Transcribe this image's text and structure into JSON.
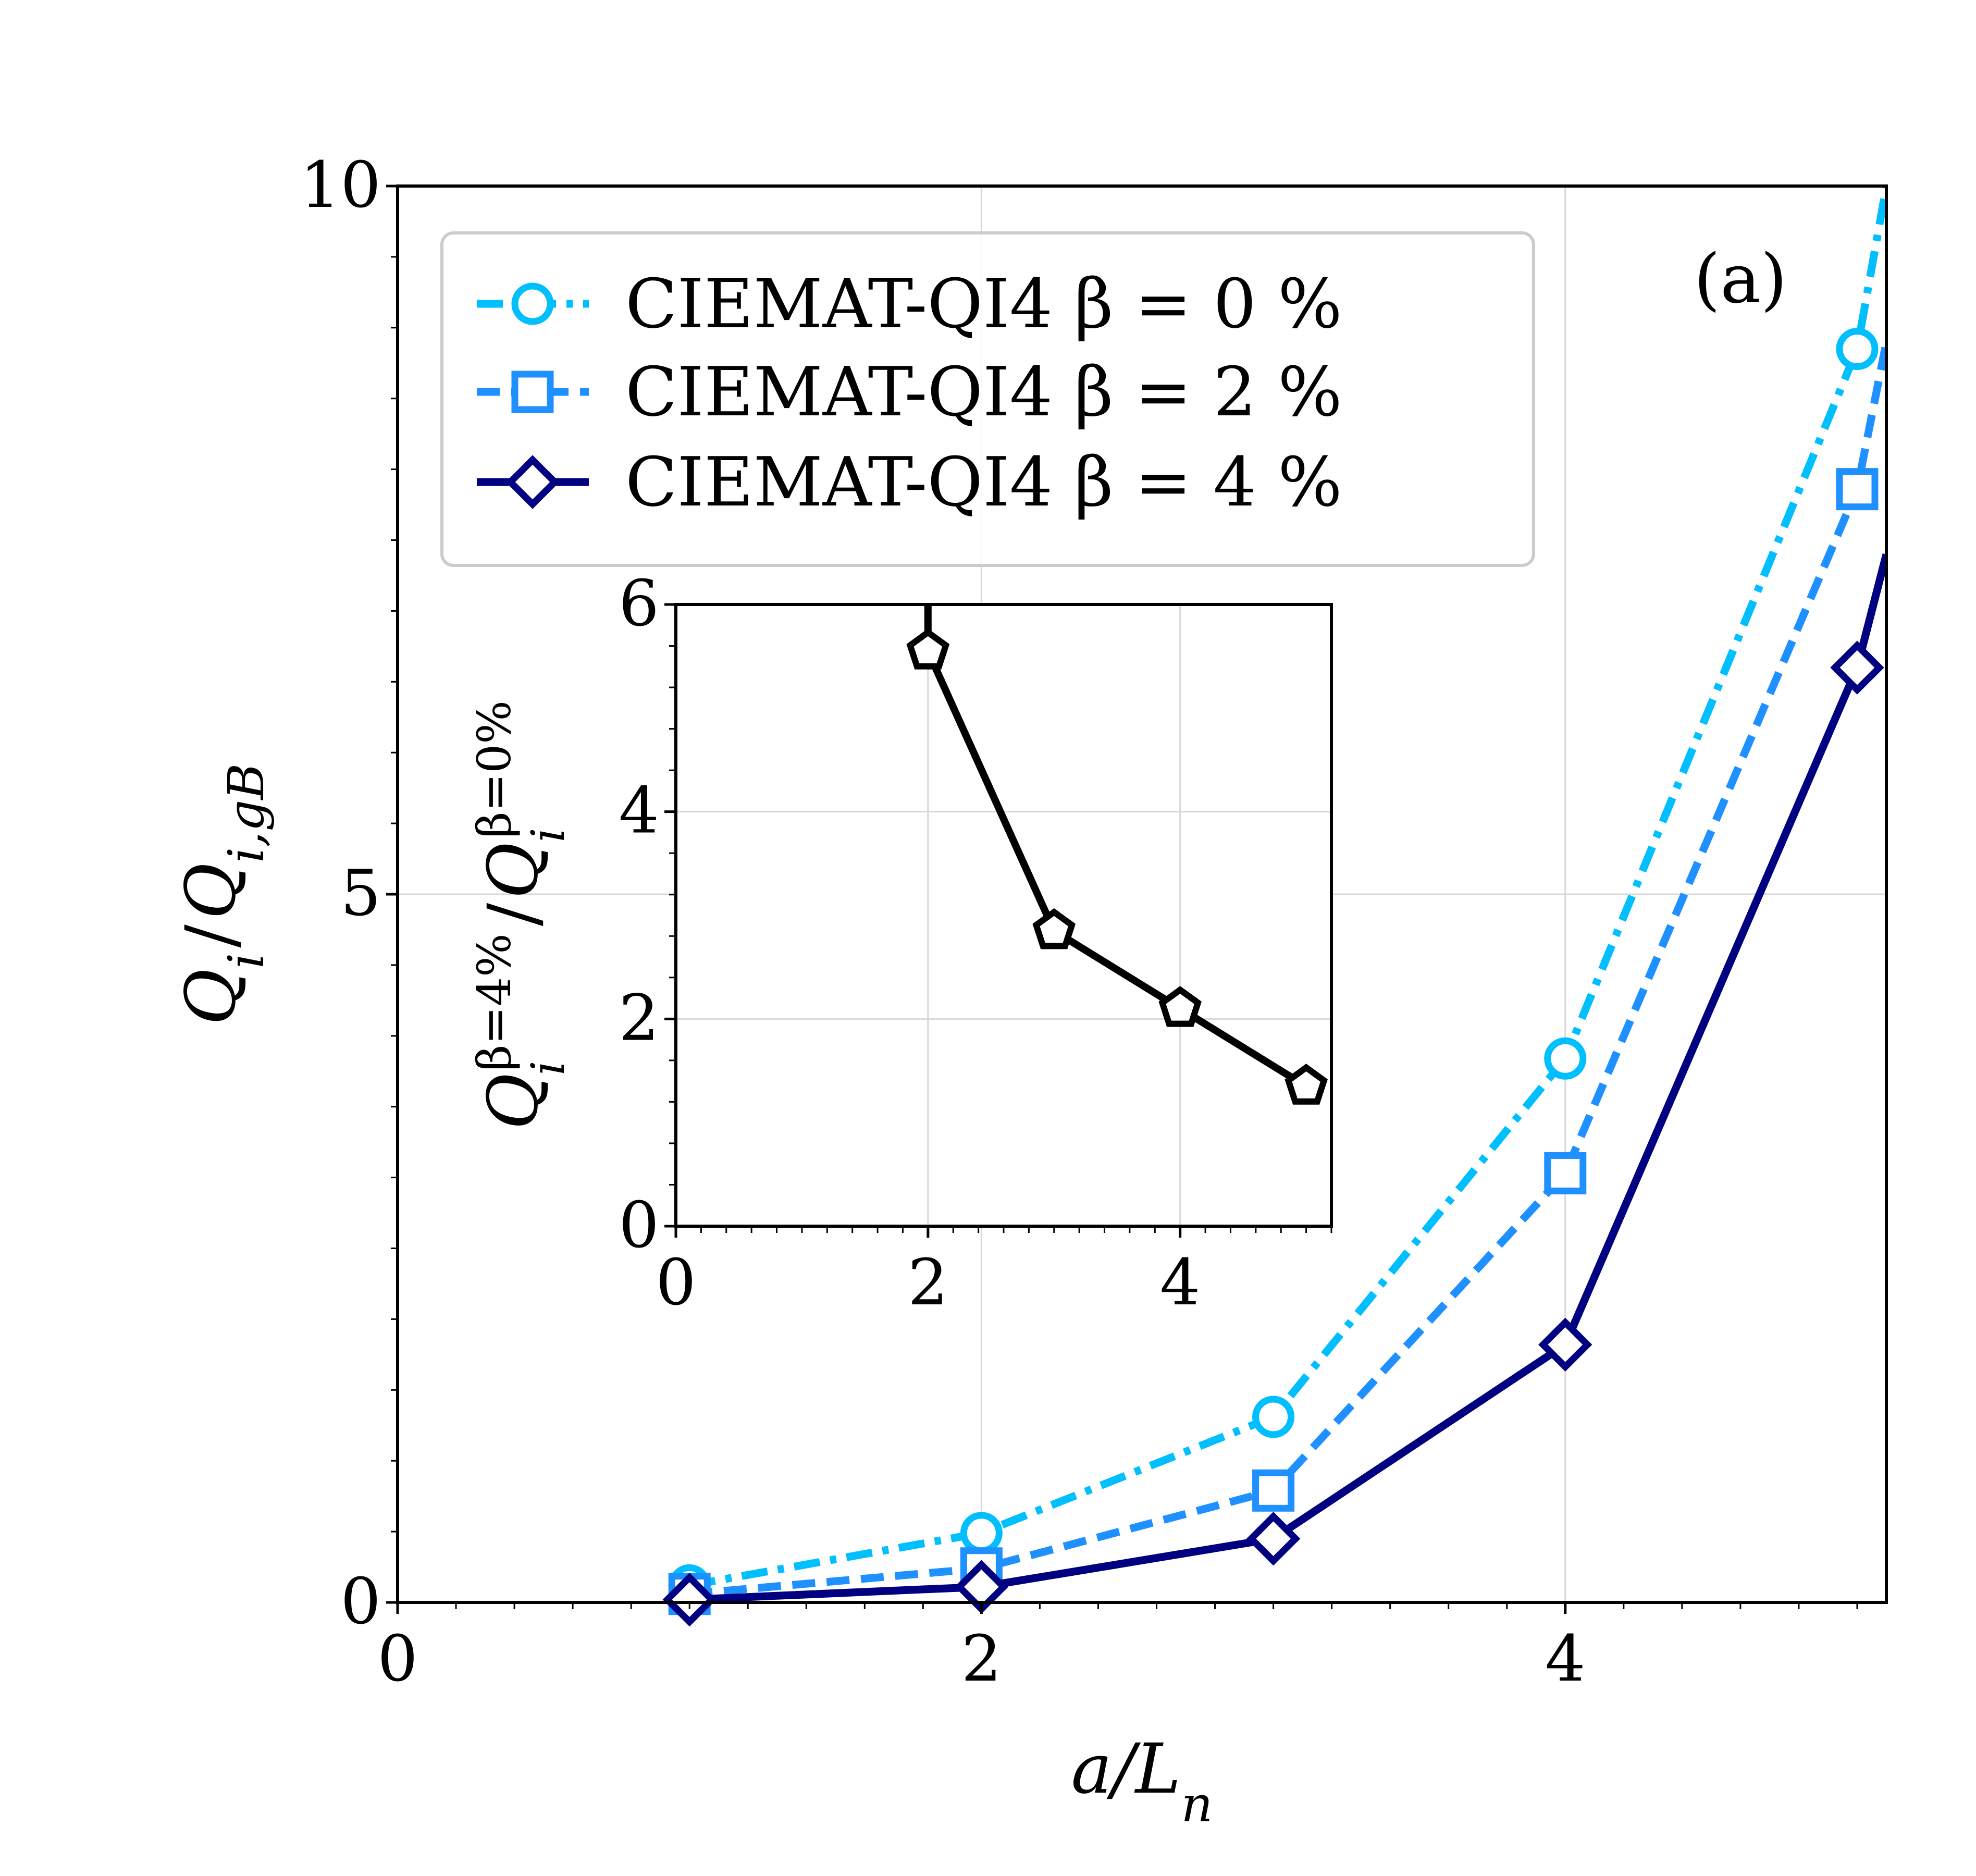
{
  "chart_data": [
    {
      "type": "line",
      "panel_label": "(a)",
      "xlabel": "a/L_n",
      "ylabel": "Q_i / Q_{i,gB}",
      "xlim": [
        0,
        5.1
      ],
      "ylim": [
        0,
        10
      ],
      "xticks": [
        "0",
        "2",
        "4"
      ],
      "yticks": [
        "0",
        "5",
        "10"
      ],
      "grid": true,
      "legend_position": "top-left",
      "series": [
        {
          "name": "CIEMAT-QI4 β = 0 %",
          "color": "#00bfff",
          "linestyle": "dashdot",
          "marker": "circle",
          "x": [
            1,
            2,
            3,
            4,
            5,
            5.1
          ],
          "y": [
            0.12,
            0.49,
            1.31,
            3.84,
            8.85,
            10.0
          ]
        },
        {
          "name": "CIEMAT-QI4 β = 2 %",
          "color": "#1e90ff",
          "linestyle": "dashed",
          "marker": "square",
          "x": [
            1,
            2,
            3,
            4,
            5,
            5.1
          ],
          "y": [
            0.06,
            0.24,
            0.79,
            3.03,
            7.86,
            8.9
          ]
        },
        {
          "name": "CIEMAT-QI4 β = 4 %",
          "color": "#000080",
          "linestyle": "solid",
          "marker": "diamond",
          "x": [
            1,
            2,
            3,
            4,
            5,
            5.1
          ],
          "y": [
            0.02,
            0.11,
            0.45,
            1.82,
            6.6,
            7.4
          ]
        }
      ]
    },
    {
      "type": "line",
      "xlabel": "",
      "ylabel": "Q_i^{β=4%} / Q_i^{β=0%}",
      "xlim": [
        0,
        5.2
      ],
      "ylim": [
        0,
        6
      ],
      "xticks": [
        "0",
        "2",
        "4"
      ],
      "yticks": [
        "0",
        "2",
        "4",
        "6"
      ],
      "grid": true,
      "series": [
        {
          "color": "#000000",
          "linestyle": "solid",
          "marker": "pentagon",
          "x": [
            2,
            2,
            3,
            4,
            5
          ],
          "y": [
            6.0,
            5.55,
            2.85,
            2.1,
            1.35
          ]
        }
      ]
    }
  ],
  "legend": {
    "entries": [
      {
        "label": "CIEMAT-QI4 β = 0 %"
      },
      {
        "label": "CIEMAT-QI4 β = 2 %"
      },
      {
        "label": "CIEMAT-QI4 β = 4 %"
      }
    ]
  },
  "main": {
    "panel_label": "(a)",
    "xlabel_text": "a/L",
    "xlabel_sub": "n",
    "ylabel_a": "Q",
    "ylabel_a_sub": "i",
    "ylabel_slash": "/",
    "ylabel_b": "Q",
    "ylabel_b_sub": "i,gB"
  },
  "inset": {
    "ylabel_a": "Q",
    "ylabel_a_sub": "i",
    "ylabel_a_sup": "β=4%",
    "ylabel_slash": "/",
    "ylabel_b": "Q",
    "ylabel_b_sub": "i",
    "ylabel_b_sup": "β=0%"
  }
}
